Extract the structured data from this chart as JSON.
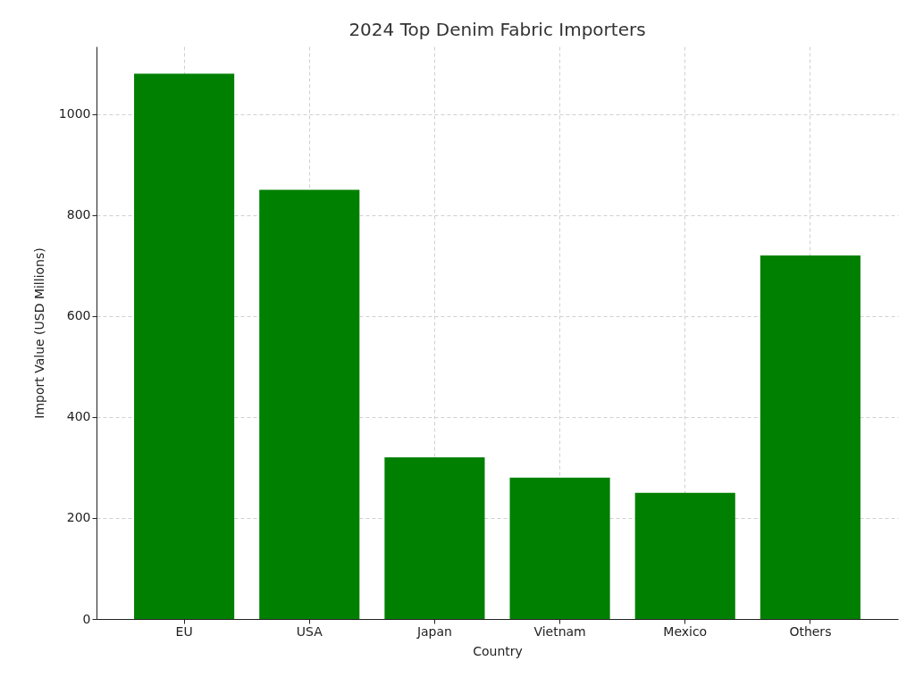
{
  "chart_data": {
    "type": "bar",
    "title": "2024 Top Denim Fabric Importers",
    "xlabel": "Country",
    "ylabel": "Import Value (USD Millions)",
    "categories": [
      "EU",
      "USA",
      "Japan",
      "Vietnam",
      "Mexico",
      "Others"
    ],
    "values": [
      1080,
      850,
      320,
      280,
      250,
      720
    ],
    "color": "#008000",
    "ylim": [
      0,
      1134
    ],
    "yticks": [
      0,
      200,
      400,
      600,
      800,
      1000
    ],
    "grid": true
  }
}
